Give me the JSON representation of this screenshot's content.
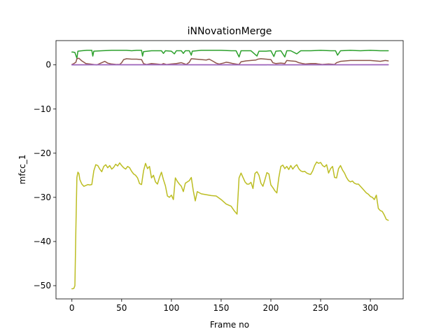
{
  "chart_data": {
    "type": "line",
    "title": "iNNovationMerge",
    "xlabel": "Frame no",
    "ylabel": "mfcc_1",
    "xlim": [
      -16,
      333
    ],
    "ylim": [
      -53,
      5.5
    ],
    "xticks": [
      0,
      50,
      100,
      150,
      200,
      250,
      300
    ],
    "yticks": [
      0,
      -10,
      -20,
      -30,
      -40,
      -50
    ],
    "grid": false,
    "legend": "none",
    "series": [
      {
        "color": "#2ca02c",
        "points": [
          [
            0,
            2.9
          ],
          [
            1,
            2.9
          ],
          [
            3,
            2.8
          ],
          [
            5,
            1.5
          ],
          [
            6,
            3.1
          ],
          [
            10,
            3.2
          ],
          [
            15,
            3.3
          ],
          [
            20,
            3.3
          ],
          [
            21,
            2.0
          ],
          [
            22,
            3.1
          ],
          [
            30,
            3.2
          ],
          [
            40,
            3.3
          ],
          [
            50,
            3.3
          ],
          [
            55,
            3.3
          ],
          [
            60,
            3.2
          ],
          [
            65,
            3.3
          ],
          [
            70,
            3.3
          ],
          [
            71,
            2.0
          ],
          [
            72,
            3.0
          ],
          [
            80,
            3.2
          ],
          [
            90,
            3.2
          ],
          [
            92,
            2.6
          ],
          [
            94,
            3.2
          ],
          [
            100,
            3.1
          ],
          [
            103,
            2.5
          ],
          [
            105,
            3.2
          ],
          [
            110,
            3.2
          ],
          [
            112,
            2.6
          ],
          [
            114,
            3.2
          ],
          [
            118,
            3.2
          ],
          [
            120,
            2.2
          ],
          [
            121,
            3.1
          ],
          [
            130,
            3.3
          ],
          [
            140,
            3.3
          ],
          [
            150,
            3.3
          ],
          [
            160,
            3.2
          ],
          [
            165,
            3.2
          ],
          [
            168,
            1.8
          ],
          [
            170,
            3.2
          ],
          [
            180,
            3.2
          ],
          [
            186,
            2.0
          ],
          [
            188,
            3.1
          ],
          [
            195,
            3.1
          ],
          [
            200,
            3.2
          ],
          [
            203,
            1.9
          ],
          [
            205,
            3.1
          ],
          [
            210,
            3.2
          ],
          [
            214,
            1.8
          ],
          [
            216,
            3.2
          ],
          [
            220,
            3.2
          ],
          [
            226,
            2.5
          ],
          [
            230,
            3.2
          ],
          [
            240,
            3.2
          ],
          [
            250,
            3.3
          ],
          [
            260,
            3.2
          ],
          [
            265,
            3.2
          ],
          [
            267,
            2.2
          ],
          [
            270,
            3.2
          ],
          [
            280,
            3.3
          ],
          [
            290,
            3.2
          ],
          [
            300,
            3.3
          ],
          [
            310,
            3.2
          ],
          [
            318,
            3.2
          ]
        ]
      },
      {
        "color": "#8c564b",
        "points": [
          [
            0,
            0.1
          ],
          [
            2,
            0.3
          ],
          [
            4,
            0.6
          ],
          [
            5,
            1.4
          ],
          [
            7,
            1.5
          ],
          [
            10,
            0.9
          ],
          [
            14,
            0.3
          ],
          [
            18,
            0.2
          ],
          [
            22,
            0.1
          ],
          [
            25,
            0.0
          ],
          [
            27,
            0.2
          ],
          [
            30,
            0.5
          ],
          [
            33,
            0.8
          ],
          [
            36,
            0.4
          ],
          [
            40,
            0.2
          ],
          [
            45,
            0.1
          ],
          [
            48,
            0.1
          ],
          [
            50,
            0.5
          ],
          [
            52,
            1.2
          ],
          [
            55,
            1.4
          ],
          [
            60,
            1.3
          ],
          [
            65,
            1.3
          ],
          [
            70,
            1.2
          ],
          [
            72,
            0.3
          ],
          [
            75,
            0.1
          ],
          [
            80,
            0.3
          ],
          [
            85,
            0.2
          ],
          [
            90,
            0.1
          ],
          [
            92,
            0.3
          ],
          [
            95,
            0.1
          ],
          [
            100,
            0.2
          ],
          [
            105,
            0.3
          ],
          [
            110,
            0.5
          ],
          [
            115,
            0.1
          ],
          [
            118,
            0.6
          ],
          [
            120,
            1.4
          ],
          [
            125,
            1.3
          ],
          [
            130,
            1.2
          ],
          [
            135,
            1.1
          ],
          [
            138,
            1.3
          ],
          [
            142,
            0.8
          ],
          [
            145,
            0.4
          ],
          [
            148,
            0.2
          ],
          [
            152,
            0.4
          ],
          [
            155,
            0.6
          ],
          [
            158,
            0.5
          ],
          [
            162,
            0.3
          ],
          [
            165,
            0.2
          ],
          [
            168,
            0.1
          ],
          [
            170,
            0.7
          ],
          [
            175,
            0.9
          ],
          [
            180,
            1.0
          ],
          [
            185,
            1.1
          ],
          [
            187,
            1.3
          ],
          [
            190,
            1.4
          ],
          [
            195,
            1.3
          ],
          [
            200,
            1.2
          ],
          [
            202,
            0.5
          ],
          [
            205,
            0.3
          ],
          [
            210,
            0.4
          ],
          [
            214,
            0.3
          ],
          [
            216,
            1.0
          ],
          [
            220,
            0.9
          ],
          [
            225,
            0.8
          ],
          [
            228,
            0.5
          ],
          [
            232,
            0.3
          ],
          [
            235,
            0.2
          ],
          [
            240,
            0.3
          ],
          [
            245,
            0.3
          ],
          [
            248,
            0.2
          ],
          [
            252,
            0.1
          ],
          [
            258,
            0.2
          ],
          [
            264,
            0.1
          ],
          [
            266,
            0.5
          ],
          [
            270,
            0.8
          ],
          [
            275,
            0.9
          ],
          [
            280,
            1.0
          ],
          [
            290,
            1.0
          ],
          [
            300,
            1.0
          ],
          [
            305,
            0.9
          ],
          [
            310,
            0.8
          ],
          [
            315,
            1.0
          ],
          [
            318,
            0.9
          ]
        ]
      },
      {
        "color": "#e377c2",
        "points": [
          [
            0,
            0.05
          ],
          [
            100,
            0.06
          ],
          [
            200,
            0.05
          ],
          [
            318,
            0.06
          ]
        ]
      },
      {
        "color": "#9467bd",
        "points": [
          [
            0,
            0.0
          ],
          [
            100,
            0.01
          ],
          [
            200,
            0.0
          ],
          [
            318,
            0.01
          ]
        ]
      },
      {
        "color": "#bcbd22",
        "points": [
          [
            0,
            -50.7
          ],
          [
            1,
            -50.7
          ],
          [
            2,
            -50.6
          ],
          [
            3,
            -50.0
          ],
          [
            4,
            -37.0
          ],
          [
            5,
            -25.5
          ],
          [
            6,
            -24.3
          ],
          [
            7,
            -24.6
          ],
          [
            8,
            -26.0
          ],
          [
            10,
            -27.0
          ],
          [
            12,
            -27.5
          ],
          [
            14,
            -27.3
          ],
          [
            16,
            -27.1
          ],
          [
            18,
            -27.2
          ],
          [
            20,
            -27.1
          ],
          [
            22,
            -24.0
          ],
          [
            24,
            -22.6
          ],
          [
            26,
            -22.8
          ],
          [
            28,
            -23.6
          ],
          [
            30,
            -24.2
          ],
          [
            32,
            -23.0
          ],
          [
            34,
            -22.6
          ],
          [
            36,
            -23.3
          ],
          [
            38,
            -22.8
          ],
          [
            40,
            -23.6
          ],
          [
            42,
            -23.2
          ],
          [
            44,
            -22.5
          ],
          [
            46,
            -22.9
          ],
          [
            48,
            -22.2
          ],
          [
            50,
            -22.8
          ],
          [
            52,
            -23.3
          ],
          [
            54,
            -23.6
          ],
          [
            56,
            -23.0
          ],
          [
            58,
            -23.3
          ],
          [
            60,
            -24.1
          ],
          [
            62,
            -24.7
          ],
          [
            64,
            -25.0
          ],
          [
            66,
            -25.6
          ],
          [
            68,
            -26.9
          ],
          [
            70,
            -27.1
          ],
          [
            72,
            -24.0
          ],
          [
            74,
            -22.3
          ],
          [
            76,
            -23.5
          ],
          [
            78,
            -23.0
          ],
          [
            80,
            -25.6
          ],
          [
            82,
            -25.0
          ],
          [
            84,
            -26.5
          ],
          [
            86,
            -27.0
          ],
          [
            88,
            -25.5
          ],
          [
            90,
            -24.3
          ],
          [
            92,
            -26.0
          ],
          [
            94,
            -27.4
          ],
          [
            96,
            -29.7
          ],
          [
            98,
            -30.0
          ],
          [
            100,
            -29.5
          ],
          [
            102,
            -30.5
          ],
          [
            104,
            -25.6
          ],
          [
            106,
            -26.4
          ],
          [
            108,
            -27.0
          ],
          [
            110,
            -27.5
          ],
          [
            112,
            -28.7
          ],
          [
            114,
            -26.8
          ],
          [
            116,
            -26.5
          ],
          [
            118,
            -26.2
          ],
          [
            120,
            -25.5
          ],
          [
            122,
            -28.5
          ],
          [
            124,
            -30.8
          ],
          [
            126,
            -28.7
          ],
          [
            130,
            -29.2
          ],
          [
            135,
            -29.4
          ],
          [
            140,
            -29.6
          ],
          [
            145,
            -29.7
          ],
          [
            150,
            -30.5
          ],
          [
            155,
            -31.5
          ],
          [
            160,
            -32.0
          ],
          [
            163,
            -33.0
          ],
          [
            166,
            -33.8
          ],
          [
            168,
            -25.6
          ],
          [
            170,
            -24.5
          ],
          [
            172,
            -25.5
          ],
          [
            174,
            -26.5
          ],
          [
            176,
            -27.0
          ],
          [
            178,
            -27.0
          ],
          [
            180,
            -26.6
          ],
          [
            182,
            -28.0
          ],
          [
            184,
            -24.6
          ],
          [
            186,
            -24.2
          ],
          [
            188,
            -25.0
          ],
          [
            190,
            -26.8
          ],
          [
            192,
            -27.5
          ],
          [
            194,
            -26.0
          ],
          [
            196,
            -24.4
          ],
          [
            198,
            -24.7
          ],
          [
            200,
            -27.2
          ],
          [
            202,
            -27.8
          ],
          [
            204,
            -28.5
          ],
          [
            206,
            -29.0
          ],
          [
            208,
            -25.5
          ],
          [
            210,
            -23.0
          ],
          [
            212,
            -22.7
          ],
          [
            214,
            -23.5
          ],
          [
            216,
            -23.0
          ],
          [
            218,
            -23.7
          ],
          [
            220,
            -22.8
          ],
          [
            222,
            -23.6
          ],
          [
            224,
            -23.0
          ],
          [
            226,
            -22.6
          ],
          [
            228,
            -23.5
          ],
          [
            230,
            -24.0
          ],
          [
            232,
            -24.2
          ],
          [
            234,
            -24.1
          ],
          [
            236,
            -24.5
          ],
          [
            238,
            -24.7
          ],
          [
            240,
            -24.8
          ],
          [
            242,
            -24.0
          ],
          [
            244,
            -22.8
          ],
          [
            246,
            -22.0
          ],
          [
            248,
            -22.3
          ],
          [
            250,
            -22.1
          ],
          [
            252,
            -22.8
          ],
          [
            254,
            -23.1
          ],
          [
            256,
            -22.6
          ],
          [
            258,
            -24.5
          ],
          [
            260,
            -23.5
          ],
          [
            262,
            -23.0
          ],
          [
            264,
            -25.5
          ],
          [
            266,
            -25.6
          ],
          [
            268,
            -23.5
          ],
          [
            270,
            -22.8
          ],
          [
            272,
            -23.8
          ],
          [
            274,
            -24.5
          ],
          [
            276,
            -25.5
          ],
          [
            278,
            -26.2
          ],
          [
            280,
            -26.5
          ],
          [
            282,
            -26.3
          ],
          [
            284,
            -26.8
          ],
          [
            286,
            -27.0
          ],
          [
            288,
            -27.0
          ],
          [
            290,
            -27.5
          ],
          [
            292,
            -28.0
          ],
          [
            294,
            -28.5
          ],
          [
            296,
            -29.0
          ],
          [
            298,
            -29.3
          ],
          [
            300,
            -29.8
          ],
          [
            302,
            -30.0
          ],
          [
            304,
            -30.5
          ],
          [
            306,
            -29.5
          ],
          [
            308,
            -32.5
          ],
          [
            310,
            -33.0
          ],
          [
            312,
            -33.2
          ],
          [
            314,
            -34.0
          ],
          [
            316,
            -35.0
          ],
          [
            318,
            -35.2
          ]
        ]
      }
    ]
  }
}
